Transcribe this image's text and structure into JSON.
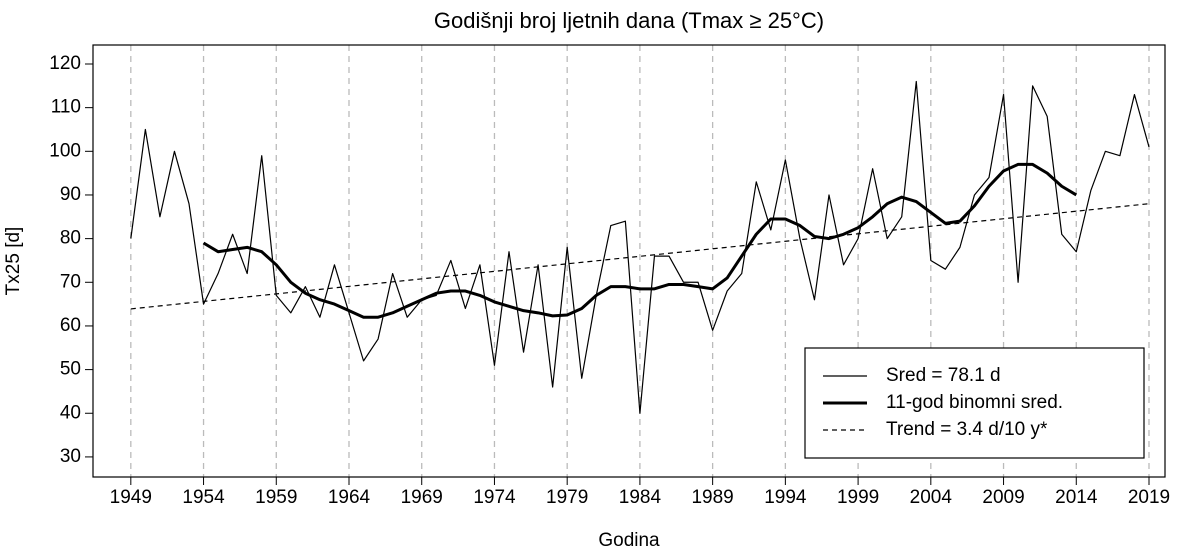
{
  "chart_data": {
    "type": "line",
    "title": "Godišnji broj ljetnih dana (Tmax ≥ 25°C)",
    "xlabel": "Godina",
    "ylabel": "Tx25 [d]",
    "x": [
      1949,
      1950,
      1951,
      1952,
      1953,
      1954,
      1955,
      1956,
      1957,
      1958,
      1959,
      1960,
      1961,
      1962,
      1963,
      1964,
      1965,
      1966,
      1967,
      1968,
      1969,
      1970,
      1971,
      1972,
      1973,
      1974,
      1975,
      1976,
      1977,
      1978,
      1979,
      1980,
      1981,
      1982,
      1983,
      1984,
      1985,
      1986,
      1987,
      1988,
      1989,
      1990,
      1991,
      1992,
      1993,
      1994,
      1995,
      1996,
      1997,
      1998,
      1999,
      2000,
      2001,
      2002,
      2003,
      2004,
      2005,
      2006,
      2007,
      2008,
      2009,
      2010,
      2011,
      2012,
      2013,
      2014,
      2015,
      2016,
      2017,
      2018,
      2019
    ],
    "series": [
      {
        "name": "Sred = 78.1 d",
        "color": "#000000",
        "width": 1.2,
        "dash": false,
        "values": [
          80,
          105,
          85,
          100,
          88,
          65,
          72,
          81,
          72,
          99,
          67,
          63,
          69,
          62,
          74,
          63,
          52,
          57,
          72,
          62,
          66,
          67,
          75,
          64,
          74,
          51,
          77,
          54,
          74,
          46,
          78,
          48,
          67,
          83,
          84,
          40,
          76,
          76,
          70,
          70,
          59,
          68,
          72,
          93,
          82,
          98,
          80,
          66,
          90,
          74,
          80,
          96,
          80,
          85,
          116,
          75,
          73,
          78,
          90,
          94,
          113,
          70,
          115,
          108,
          81,
          77,
          91,
          100,
          99,
          113,
          101
        ]
      },
      {
        "name": "11-god binomni sred.",
        "color": "#000000",
        "width": 3,
        "dash": false,
        "values": [
          null,
          null,
          null,
          null,
          null,
          79,
          77,
          77.5,
          78,
          77,
          74,
          70,
          67.5,
          66,
          65,
          63.5,
          62,
          62,
          63,
          64.5,
          66,
          67.5,
          68,
          68,
          67,
          65.5,
          64.5,
          63.5,
          63,
          62.3,
          62.5,
          64,
          67,
          69,
          69,
          68.5,
          68.5,
          69.5,
          69.5,
          69,
          68.5,
          71,
          76,
          81,
          84.5,
          84.5,
          83,
          80.5,
          80,
          81,
          82.5,
          85,
          88,
          89.5,
          88.5,
          86,
          83.5,
          84,
          87.5,
          92,
          95.5,
          97,
          97,
          95,
          92,
          90,
          null,
          null,
          null,
          null,
          null
        ]
      },
      {
        "name": "Trend = 3.4 d/10 y*",
        "color": "#000000",
        "width": 1.2,
        "dash": true,
        "x": [
          1949,
          2019
        ],
        "values": [
          63.9,
          88.0
        ]
      }
    ],
    "xlim": [
      1946.4,
      2020.1
    ],
    "ylim": [
      25.4,
      124.35
    ],
    "xticks": [
      1949,
      1954,
      1959,
      1964,
      1969,
      1974,
      1979,
      1984,
      1989,
      1994,
      1999,
      2004,
      2009,
      2014,
      2019
    ],
    "yticks": [
      30,
      40,
      50,
      60,
      70,
      80,
      90,
      100,
      110,
      120
    ],
    "grid": "x",
    "legend": "lower right"
  }
}
